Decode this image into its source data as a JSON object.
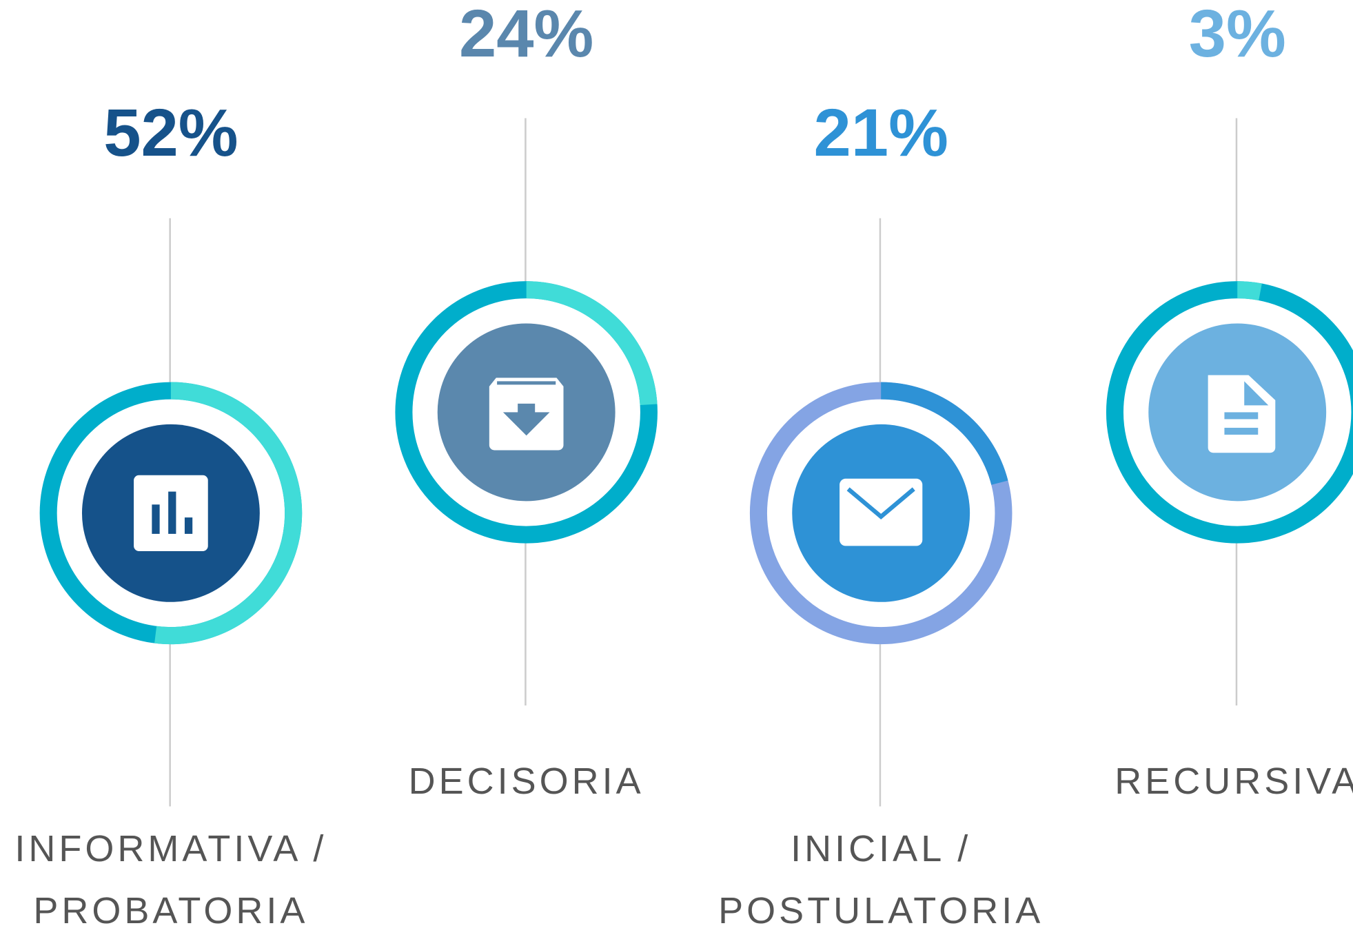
{
  "chart_data": [
    {
      "type": "donut",
      "categories": [
        "INFORMATIVA / PROBATORIA"
      ],
      "values": [
        52
      ],
      "value_labels": [
        "52%"
      ],
      "color": "#40dcd8",
      "track_color": "#00aecb",
      "center_color": "#15528a",
      "label_color": "#16528a"
    },
    {
      "type": "donut",
      "categories": [
        "DECISORIA"
      ],
      "values": [
        24
      ],
      "value_labels": [
        "24%"
      ],
      "color": "#40dcd8",
      "track_color": "#00aecb",
      "center_color": "#5b88ad",
      "label_color": "#5a87ad"
    },
    {
      "type": "donut",
      "categories": [
        "INICIAL / POSTULATORIA"
      ],
      "values": [
        21
      ],
      "value_labels": [
        "21%"
      ],
      "color": "#2e92d6",
      "track_color": "#84a4e4",
      "center_color": "#2e92d6",
      "label_color": "#2e92d6"
    },
    {
      "type": "donut",
      "categories": [
        "RECURSIVA"
      ],
      "values": [
        3
      ],
      "value_labels": [
        "3%"
      ],
      "color": "#40dcd8",
      "track_color": "#00aecb",
      "center_color": "#6cb1e0",
      "label_color": "#6cb1e0"
    }
  ]
}
